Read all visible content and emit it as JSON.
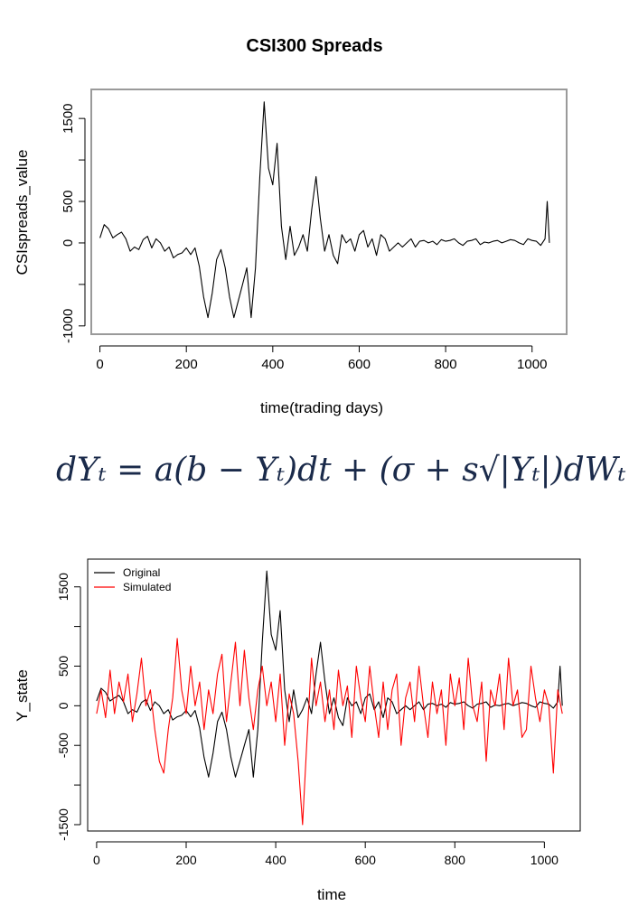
{
  "formula": {
    "text": "dYₜ = a(b − Yₜ)dt + (σ + s√|Yₜ|)dWₜ"
  },
  "chart_data": [
    {
      "type": "line",
      "title": "CSI300 Spreads",
      "xlabel": "time(trading days)",
      "ylabel": "CSIspreads_value",
      "xlim": [
        -20,
        1080
      ],
      "ylim": [
        -1100,
        1850
      ],
      "xticks": [
        0,
        200,
        400,
        600,
        800,
        1000
      ],
      "yticks": [
        -1000,
        -500,
        0,
        500,
        1000,
        1500
      ],
      "ytick_labels": [
        "-1000",
        "",
        "0",
        "500",
        "",
        "1500"
      ],
      "grid": false,
      "series": [
        {
          "color": "#000000",
          "x": [
            0,
            10,
            20,
            30,
            40,
            50,
            60,
            70,
            80,
            90,
            100,
            110,
            120,
            130,
            140,
            150,
            160,
            170,
            180,
            190,
            200,
            210,
            220,
            230,
            240,
            250,
            260,
            270,
            280,
            290,
            300,
            310,
            320,
            330,
            340,
            350,
            360,
            370,
            380,
            390,
            400,
            410,
            420,
            430,
            440,
            450,
            460,
            470,
            480,
            490,
            500,
            510,
            520,
            530,
            540,
            550,
            560,
            570,
            580,
            590,
            600,
            610,
            620,
            630,
            640,
            650,
            660,
            670,
            680,
            690,
            700,
            710,
            720,
            730,
            740,
            750,
            760,
            770,
            780,
            790,
            800,
            810,
            820,
            830,
            840,
            850,
            860,
            870,
            880,
            890,
            900,
            910,
            920,
            930,
            940,
            950,
            960,
            970,
            980,
            990,
            1000,
            1010,
            1020,
            1030,
            1035,
            1040
          ],
          "y": [
            60,
            220,
            170,
            60,
            100,
            130,
            50,
            -100,
            -50,
            -80,
            40,
            80,
            -60,
            50,
            0,
            -100,
            -50,
            -180,
            -140,
            -120,
            -60,
            -140,
            -60,
            -280,
            -650,
            -900,
            -600,
            -200,
            -80,
            -300,
            -650,
            -900,
            -700,
            -500,
            -300,
            -900,
            -300,
            800,
            1700,
            900,
            700,
            1200,
            200,
            -200,
            200,
            -150,
            -50,
            100,
            -100,
            400,
            800,
            300,
            -100,
            100,
            -150,
            -250,
            100,
            0,
            50,
            -100,
            100,
            150,
            -50,
            50,
            -150,
            100,
            50,
            -100,
            -50,
            0,
            -50,
            0,
            50,
            -50,
            20,
            30,
            0,
            20,
            -20,
            40,
            20,
            30,
            50,
            0,
            -30,
            20,
            30,
            50,
            -20,
            10,
            0,
            20,
            30,
            0,
            20,
            40,
            30,
            0,
            -20,
            50,
            30,
            20,
            -30,
            50,
            500,
            0
          ]
        }
      ]
    },
    {
      "type": "line",
      "title": "",
      "xlabel": "time",
      "ylabel": "Y_state",
      "xlim": [
        -20,
        1080
      ],
      "ylim": [
        -1580,
        1850
      ],
      "xticks": [
        0,
        200,
        400,
        600,
        800,
        1000
      ],
      "yticks": [
        -1500,
        -1000,
        -500,
        0,
        500,
        1000,
        1500
      ],
      "ytick_labels": [
        "-1500",
        "",
        "-500",
        "0",
        "500",
        "",
        "1500"
      ],
      "grid": false,
      "legend": "top-left",
      "series": [
        {
          "name": "Original",
          "color": "#000000",
          "x": [
            0,
            10,
            20,
            30,
            40,
            50,
            60,
            70,
            80,
            90,
            100,
            110,
            120,
            130,
            140,
            150,
            160,
            170,
            180,
            190,
            200,
            210,
            220,
            230,
            240,
            250,
            260,
            270,
            280,
            290,
            300,
            310,
            320,
            330,
            340,
            350,
            360,
            370,
            380,
            390,
            400,
            410,
            420,
            430,
            440,
            450,
            460,
            470,
            480,
            490,
            500,
            510,
            520,
            530,
            540,
            550,
            560,
            570,
            580,
            590,
            600,
            610,
            620,
            630,
            640,
            650,
            660,
            670,
            680,
            690,
            700,
            710,
            720,
            730,
            740,
            750,
            760,
            770,
            780,
            790,
            800,
            810,
            820,
            830,
            840,
            850,
            860,
            870,
            880,
            890,
            900,
            910,
            920,
            930,
            940,
            950,
            960,
            970,
            980,
            990,
            1000,
            1010,
            1020,
            1030,
            1035,
            1040
          ],
          "y": [
            60,
            220,
            170,
            60,
            100,
            130,
            50,
            -100,
            -50,
            -80,
            40,
            80,
            -60,
            50,
            0,
            -100,
            -50,
            -180,
            -140,
            -120,
            -60,
            -140,
            -60,
            -280,
            -650,
            -900,
            -600,
            -200,
            -80,
            -300,
            -650,
            -900,
            -700,
            -500,
            -300,
            -900,
            -300,
            800,
            1700,
            900,
            700,
            1200,
            200,
            -200,
            200,
            -150,
            -50,
            100,
            -100,
            400,
            800,
            300,
            -100,
            100,
            -150,
            -250,
            100,
            0,
            50,
            -100,
            100,
            150,
            -50,
            50,
            -150,
            100,
            50,
            -100,
            -50,
            0,
            -50,
            0,
            50,
            -50,
            20,
            30,
            0,
            20,
            -20,
            40,
            20,
            30,
            50,
            0,
            -30,
            20,
            30,
            50,
            -20,
            10,
            0,
            20,
            30,
            0,
            20,
            40,
            30,
            0,
            -20,
            50,
            30,
            20,
            -30,
            50,
            500,
            0
          ]
        },
        {
          "name": "Simulated",
          "color": "#ff0000",
          "x": [
            0,
            10,
            20,
            30,
            40,
            50,
            60,
            70,
            80,
            90,
            100,
            110,
            120,
            130,
            140,
            150,
            160,
            170,
            180,
            190,
            200,
            210,
            220,
            230,
            240,
            250,
            260,
            270,
            280,
            290,
            300,
            310,
            320,
            330,
            340,
            350,
            360,
            370,
            380,
            390,
            400,
            410,
            420,
            430,
            440,
            450,
            460,
            470,
            480,
            490,
            500,
            510,
            520,
            530,
            540,
            550,
            560,
            570,
            580,
            590,
            600,
            610,
            620,
            630,
            640,
            650,
            660,
            670,
            680,
            690,
            700,
            710,
            720,
            730,
            740,
            750,
            760,
            770,
            780,
            790,
            800,
            810,
            820,
            830,
            840,
            850,
            860,
            870,
            880,
            890,
            900,
            910,
            920,
            930,
            940,
            950,
            960,
            970,
            980,
            990,
            1000,
            1010,
            1020,
            1030,
            1040
          ],
          "y": [
            -100,
            200,
            -150,
            450,
            -100,
            300,
            50,
            400,
            -200,
            150,
            600,
            0,
            200,
            -300,
            -700,
            -850,
            -300,
            100,
            850,
            200,
            -100,
            500,
            0,
            300,
            -300,
            200,
            -100,
            400,
            650,
            -200,
            300,
            800,
            0,
            700,
            100,
            -300,
            200,
            500,
            0,
            300,
            -200,
            400,
            -500,
            150,
            -100,
            -700,
            -1500,
            -400,
            600,
            0,
            300,
            -200,
            200,
            -300,
            450,
            0,
            250,
            -400,
            500,
            100,
            -200,
            500,
            0,
            -400,
            300,
            -300,
            200,
            400,
            -500,
            100,
            300,
            -200,
            500,
            0,
            -400,
            300,
            -100,
            200,
            -500,
            400,
            0,
            350,
            -300,
            600,
            0,
            -200,
            300,
            -700,
            200,
            0,
            400,
            -300,
            600,
            0,
            200,
            -400,
            -300,
            500,
            100,
            -200,
            200,
            0,
            -850,
            200,
            -100
          ]
        }
      ]
    }
  ]
}
